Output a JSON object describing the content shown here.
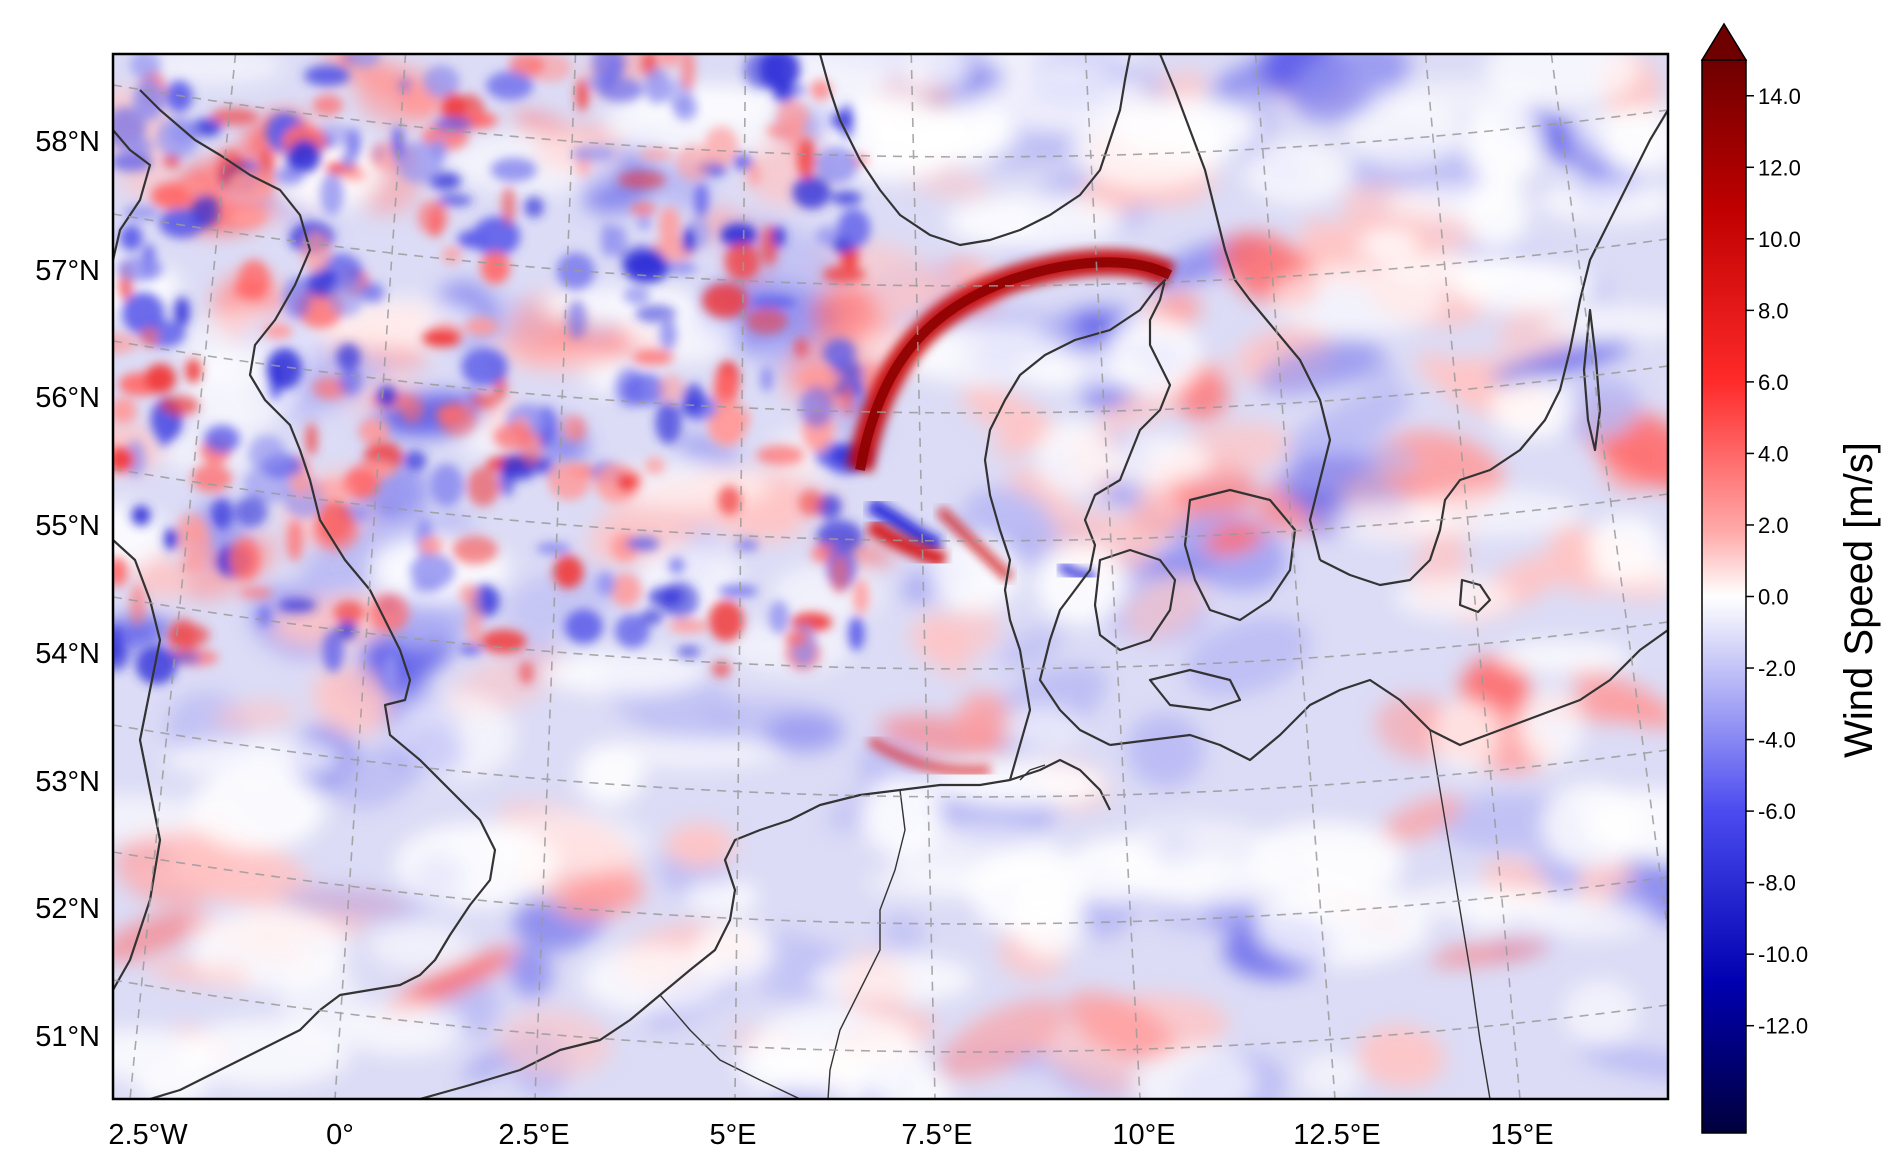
{
  "map": {
    "lat_labels": [
      "58°N",
      "57°N",
      "56°N",
      "55°N",
      "54°N",
      "53°N",
      "52°N",
      "51°N"
    ],
    "lon_labels": [
      "2.5°W",
      "0°",
      "2.5°E",
      "5°E",
      "7.5°E",
      "10°E",
      "12.5°E",
      "15°E"
    ],
    "features": {
      "coastline_color": "#333333",
      "graticule": "dashed grey"
    }
  },
  "colorbar": {
    "label": "Wind Speed [m/s]",
    "min": -15,
    "max": 15,
    "extend": "max",
    "ticks": [
      "14.0",
      "12.0",
      "10.0",
      "8.0",
      "6.0",
      "4.0",
      "2.0",
      "0.0",
      "-2.0",
      "-4.0",
      "-6.0",
      "-8.0",
      "-10.0",
      "-12.0"
    ],
    "tick_values": [
      14,
      12,
      10,
      8,
      6,
      4,
      2,
      0,
      -2,
      -4,
      -6,
      -8,
      -10,
      -12
    ],
    "colors": {
      "high": "#6e0000",
      "mid_red": "#e01010",
      "zero": "#ffffff",
      "mid_blue": "#3b3bf0",
      "low": "#00003c"
    }
  }
}
